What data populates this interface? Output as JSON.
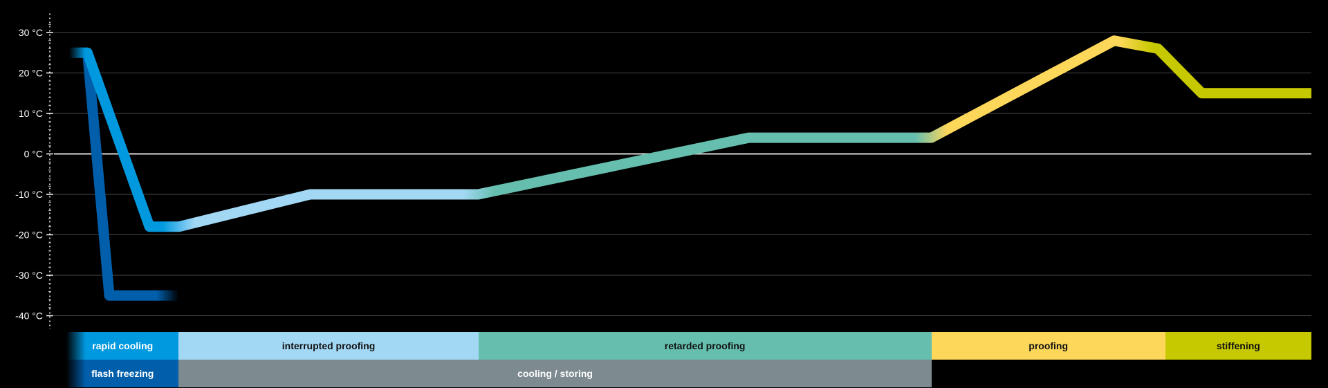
{
  "chart_data": {
    "type": "line",
    "title": "",
    "xlabel": "",
    "ylabel": "",
    "ylim": [
      -43,
      33
    ],
    "y_ticks": [
      30,
      20,
      10,
      0,
      -10,
      -20,
      -30,
      -40
    ],
    "y_tick_labels": [
      "30 °C",
      "20 °C",
      "10 °C",
      "0 °C",
      "-10 °C",
      "-20 °C",
      "-30 °C",
      "-40 °C"
    ],
    "grid": true,
    "zero_line_emphasized": true,
    "x_axis_labeled": false,
    "series": [
      {
        "points": [
          [
            0,
            25
          ],
          [
            2.5,
            25
          ],
          [
            11,
            -18
          ],
          [
            15,
            -18
          ],
          [
            33,
            -10
          ],
          [
            56,
            -10
          ],
          [
            93,
            4
          ],
          [
            118,
            4
          ],
          [
            143,
            28
          ],
          [
            149,
            26
          ],
          [
            155,
            15
          ],
          [
            170,
            15
          ]
        ],
        "color_segments": [
          {
            "from": 0,
            "to": 15,
            "color": "#0099e0"
          },
          {
            "from": 15,
            "to": 56,
            "color": "#a3d8f5"
          },
          {
            "from": 56,
            "to": 118,
            "color": "#66bfae"
          },
          {
            "from": 118,
            "to": 146,
            "color": "#fdd75a"
          },
          {
            "from": 146,
            "to": 170,
            "color": "#c7c900"
          }
        ]
      },
      {
        "points": [
          [
            0,
            25
          ],
          [
            2.5,
            25
          ],
          [
            5.5,
            -35
          ],
          [
            15,
            -35
          ]
        ],
        "color_segments": [
          {
            "from": 0,
            "to": 15,
            "color": "#005eab"
          }
        ]
      }
    ],
    "phase_bars": {
      "row1": [
        {
          "label": "rapid cooling",
          "from": 0,
          "to": 15,
          "color": "#0099e0",
          "text_color": "#ffffff"
        },
        {
          "label": "interrupted proofing",
          "from": 15,
          "to": 56,
          "color": "#a3d8f5",
          "text_color": "#111111"
        },
        {
          "label": "retarded proofing",
          "from": 56,
          "to": 118,
          "color": "#66bfae",
          "text_color": "#111111"
        },
        {
          "label": "proofing",
          "from": 118,
          "to": 150,
          "color": "#fdd75a",
          "text_color": "#111111"
        },
        {
          "label": "stiffening",
          "from": 150,
          "to": 170,
          "color": "#c7c900",
          "text_color": "#111111"
        }
      ],
      "row2": [
        {
          "label": "flash freezing",
          "from": 0,
          "to": 15,
          "color": "#005eab",
          "text_color": "#ffffff"
        },
        {
          "label": "cooling / storing",
          "from": 15,
          "to": 118,
          "color": "#7d8a90",
          "text_color": "#ffffff"
        }
      ]
    }
  }
}
